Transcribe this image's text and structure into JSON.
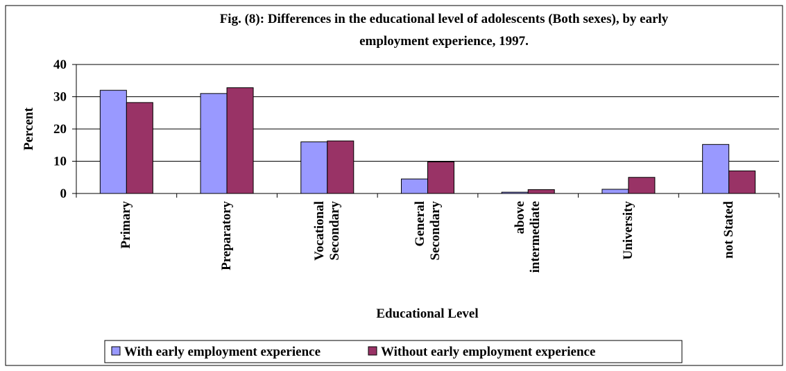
{
  "chart_data": {
    "type": "bar",
    "title": "Fig. (8): Differences in the educational level of adolescents (Both sexes), by early",
    "title_line2": "employment experience, 1997.",
    "x_label": "Educational Level",
    "y_label": "Percent",
    "categories": [
      "Primary",
      "Preparatory",
      "Vocational Secondary",
      "General Secondary",
      "above intermediate",
      "University",
      "not Stated"
    ],
    "series": [
      {
        "name": "With early employment experience",
        "color": "#9999ff",
        "values": [
          32,
          31,
          16,
          4.5,
          0.4,
          1.3,
          15.2
        ]
      },
      {
        "name": "Without early employment experience",
        "color": "#993366",
        "values": [
          28.2,
          32.8,
          16.3,
          9.8,
          1.2,
          5,
          7
        ]
      }
    ],
    "ylim": [
      0,
      40
    ],
    "yticks": [
      0,
      10,
      20,
      30,
      40
    ],
    "grid": true,
    "legend": "bottom"
  }
}
